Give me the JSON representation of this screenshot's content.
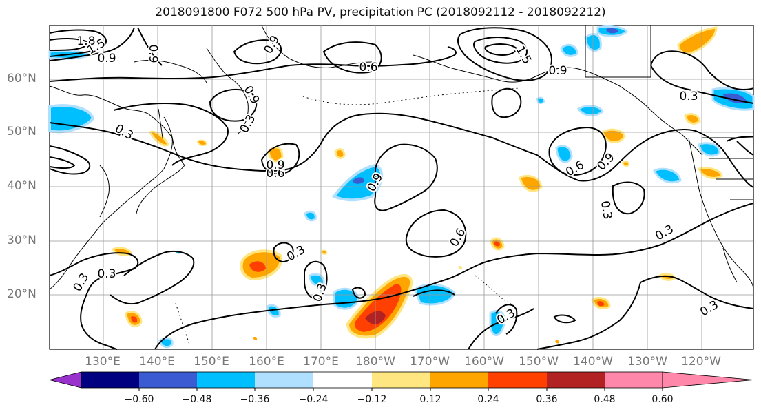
{
  "title": "2018091800 F072 500 hPa PV, precipitation PC (2018092112 - 2018092212)",
  "map": {
    "region": "North Pacific",
    "lat_labels": [
      "60°N",
      "50°N",
      "40°N",
      "30°N",
      "20°N"
    ],
    "lon_labels": [
      "130°E",
      "140°E",
      "150°E",
      "160°E",
      "170°E",
      "180°W",
      "170°W",
      "160°W",
      "150°W",
      "140°W",
      "130°W",
      "120°W"
    ],
    "grid": true,
    "contour_labels": [
      "1.8",
      "1.5",
      "0.9",
      "0.9",
      "0.9",
      "0.6",
      "0.9",
      "1.5",
      "0.9",
      "0.3",
      "0.6",
      "0.3",
      "0.9",
      "0.9",
      "0.6",
      "0.9",
      "0.3",
      "0.6",
      "0.3",
      "0.3",
      "0.3",
      "0.3",
      "0.3",
      "0.3",
      "0.3",
      "0.3"
    ],
    "colors": {
      "coast": "#000000",
      "grid": "#999999",
      "contour": "#000000",
      "neg_light": "#b0e0ff",
      "neg_mid": "#00bfff",
      "neg_strong": "#3a5bd1",
      "pos_light": "#ffe680",
      "pos_mid": "#ffa500",
      "pos_strong": "#ff4000",
      "pos_darker": "#b22222"
    }
  },
  "colorbar": {
    "ticks": [
      "−0.60",
      "−0.48",
      "−0.36",
      "−0.24",
      "−0.12",
      "0.12",
      "0.24",
      "0.36",
      "0.48",
      "0.60"
    ],
    "colors": [
      "#9932cc",
      "#000080",
      "#3a5bd1",
      "#00bfff",
      "#b0e0ff",
      "#ffffff",
      "#ffe680",
      "#ffa500",
      "#ff4000",
      "#b22222",
      "#ff88aa"
    ]
  }
}
